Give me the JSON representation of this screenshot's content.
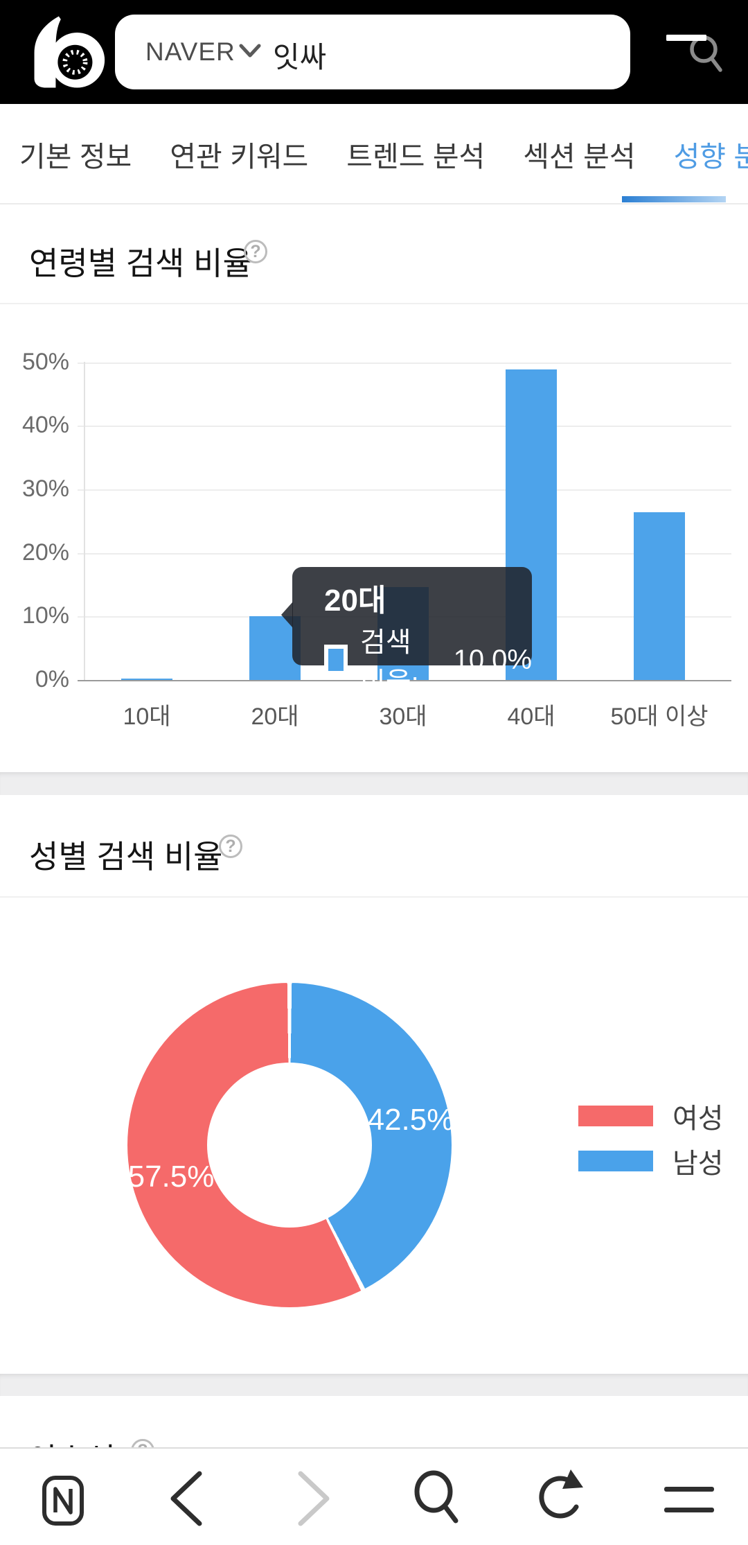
{
  "header": {
    "search_engine": "NAVER",
    "query": "잇싸"
  },
  "tabs": {
    "items": [
      {
        "label": "기본 정보",
        "active": false
      },
      {
        "label": "연관 키워드",
        "active": false
      },
      {
        "label": "트렌드 분석",
        "active": false
      },
      {
        "label": "섹션 분석",
        "active": false
      },
      {
        "label": "성향 분석",
        "active": true
      }
    ]
  },
  "sections": {
    "age": {
      "title": "연령별 검색 비율",
      "help": "?"
    },
    "gender": {
      "title": "성별 검색 비율",
      "help": "?"
    },
    "partial": {
      "title": "이슈성",
      "help": "?"
    }
  },
  "tooltip": {
    "title": "20대",
    "label": "검색 비율:",
    "value": "10.0%"
  },
  "chart_data": [
    {
      "type": "bar",
      "title": "연령별 검색 비율",
      "categories": [
        "10대",
        "20대",
        "30대",
        "40대",
        "50대 이상"
      ],
      "values": [
        0.1,
        10.0,
        14.6,
        48.9,
        26.4
      ],
      "series_name": "검색 비율",
      "ylim": [
        0,
        50
      ],
      "yticks": [
        {
          "value": 50,
          "label": "50%"
        },
        {
          "value": 40,
          "label": "40%"
        },
        {
          "value": 30,
          "label": "30%"
        },
        {
          "value": 20,
          "label": "20%"
        },
        {
          "value": 10,
          "label": "10%"
        },
        {
          "value": 0,
          "label": "0%"
        }
      ],
      "grid": true,
      "bar_color": "#4da3ea",
      "tooltip": {
        "category": "20대",
        "label": "검색 비율",
        "value": "10.0%"
      }
    },
    {
      "type": "pie",
      "title": "성별 검색 비율",
      "slices": [
        {
          "name": "여성",
          "value": 57.5,
          "label": "57.5%",
          "color": "#f56a6a"
        },
        {
          "name": "남성",
          "value": 42.5,
          "label": "42.5%",
          "color": "#4aa2ea"
        }
      ],
      "start": "남성 slice starts at 12 o'clock, clockwise",
      "legend_position": "right",
      "donut": true
    }
  ],
  "colors": {
    "active_tab_blue": "#4f9ce4",
    "bar_blue": "#4da3ea",
    "donut_red": "#f56a6a",
    "donut_blue": "#4aa2ea",
    "header_bg": "#000000"
  },
  "toolbar": {
    "icons": [
      "naver-app",
      "back",
      "forward",
      "search",
      "refresh",
      "menu"
    ]
  }
}
